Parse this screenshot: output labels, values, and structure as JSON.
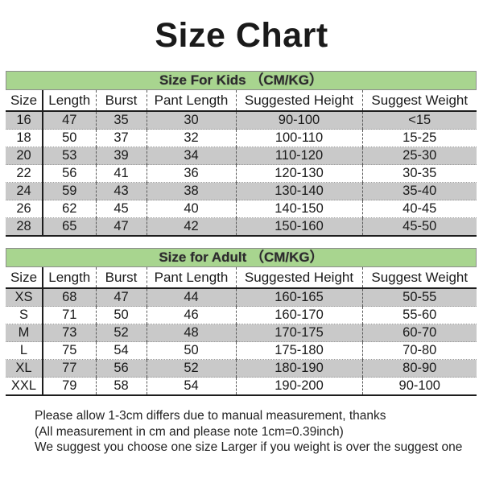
{
  "page": {
    "title": "Size Chart"
  },
  "columns": [
    "Size",
    "Length",
    "Burst",
    "Pant Length",
    "Suggested Height",
    "Suggest Weight"
  ],
  "kids": {
    "header": "Size For Kids （CM/KG）",
    "rows": [
      [
        "16",
        "47",
        "35",
        "30",
        "90-100",
        "<15"
      ],
      [
        "18",
        "50",
        "37",
        "32",
        "100-110",
        "15-25"
      ],
      [
        "20",
        "53",
        "39",
        "34",
        "110-120",
        "25-30"
      ],
      [
        "22",
        "56",
        "41",
        "36",
        "120-130",
        "30-35"
      ],
      [
        "24",
        "59",
        "43",
        "38",
        "130-140",
        "35-40"
      ],
      [
        "26",
        "62",
        "45",
        "40",
        "140-150",
        "40-45"
      ],
      [
        "28",
        "65",
        "47",
        "42",
        "150-160",
        "45-50"
      ]
    ]
  },
  "adult": {
    "header": "Size for Adult （CM/KG）",
    "rows": [
      [
        "XS",
        "68",
        "47",
        "44",
        "160-165",
        "50-55"
      ],
      [
        "S",
        "71",
        "50",
        "46",
        "160-170",
        "55-60"
      ],
      [
        "M",
        "73",
        "52",
        "48",
        "170-175",
        "60-70"
      ],
      [
        "L",
        "75",
        "54",
        "50",
        "175-180",
        "70-80"
      ],
      [
        "XL",
        "77",
        "56",
        "52",
        "180-190",
        "80-90"
      ],
      [
        "XXL",
        "79",
        "58",
        "54",
        "190-200",
        "90-100"
      ]
    ]
  },
  "notes": [
    "Please allow 1-3cm differs due to manual measurement, thanks",
    "(All measurement in cm and please note 1cm=0.39inch)",
    "We suggest you choose one size Larger if you weight is over the suggest one"
  ],
  "colors": {
    "header_green": "#a8d58f",
    "stripe_gray": "#c9c9c9"
  }
}
